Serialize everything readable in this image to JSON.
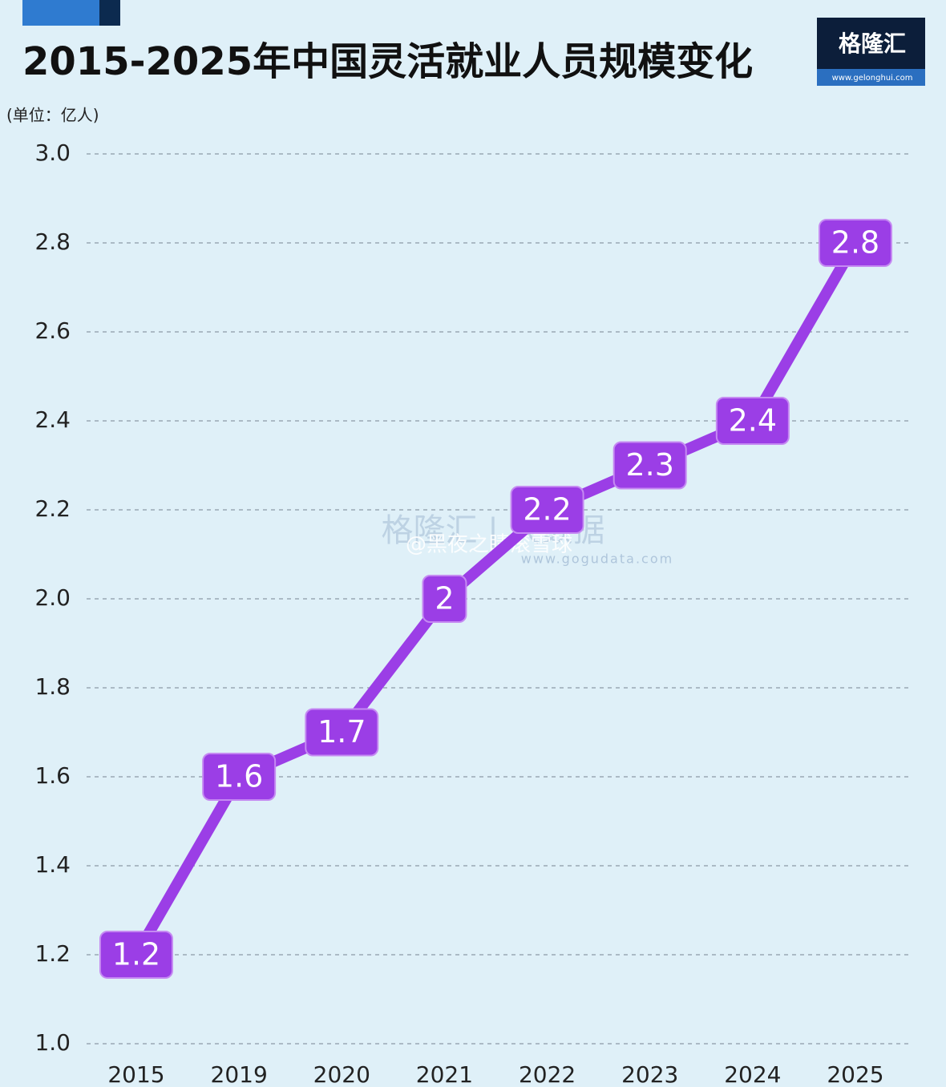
{
  "chart_data": {
    "type": "line",
    "title": "2015-2025年中国灵活就业人员规模变化",
    "unit": "(单位：亿人)",
    "categories": [
      "2015",
      "2019",
      "2020",
      "2021",
      "2022",
      "2023",
      "2024",
      "2025"
    ],
    "values": [
      1.2,
      1.6,
      1.7,
      2,
      2.2,
      2.3,
      2.4,
      2.8
    ],
    "color": "#9b3ee6",
    "ylim": [
      1.0,
      3.0
    ],
    "yticks": [
      {
        "value": 1.0,
        "label": "1.0"
      },
      1.2,
      1.4,
      1.6,
      1.8,
      {
        "value": 2.0,
        "label": "2.0"
      },
      2.2,
      2.4,
      2.6,
      2.8,
      {
        "value": 3.0,
        "label": "3.0"
      }
    ],
    "grid": true
  },
  "logo": {
    "name": "格隆汇",
    "url": "www.gelonghui.com"
  },
  "watermarks": [
    "格隆汇 | 大数据",
    "www.gogudata.com",
    "@黑夜之睛滚雪球"
  ]
}
